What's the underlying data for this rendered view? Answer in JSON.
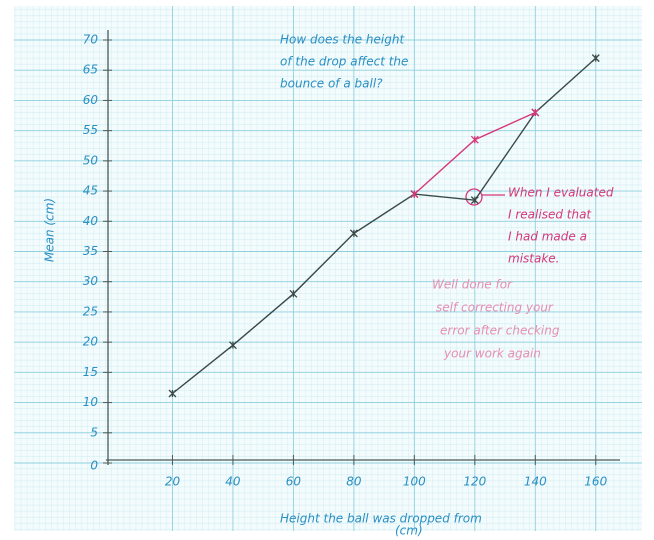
{
  "chart_data": {
    "type": "line",
    "title": [
      "How does the height",
      "of the drop affect the",
      "bounce of a ball?"
    ],
    "xlabel": [
      "Height the ball was dropped from",
      "(cm)"
    ],
    "ylabel": "Mean (cm)",
    "x": [
      20,
      40,
      60,
      80,
      100,
      120,
      140,
      160
    ],
    "series": [
      {
        "color": "#3a4a48",
        "values": [
          11.5,
          19.5,
          28,
          38,
          44.5,
          43.5,
          58,
          67
        ]
      },
      {
        "color": "#d4387a",
        "values": [
          null,
          null,
          null,
          null,
          44.5,
          53.5,
          58,
          null
        ]
      }
    ],
    "xlim": [
      0,
      170
    ],
    "ylim": [
      0,
      70
    ],
    "xticks": [
      20,
      40,
      60,
      80,
      100,
      120,
      140,
      160
    ],
    "yticks": [
      0,
      5,
      10,
      15,
      20,
      25,
      30,
      35,
      40,
      45,
      50,
      55,
      60,
      65,
      70
    ],
    "grid": true,
    "annotations": [
      {
        "color": "#d4387a",
        "lines": [
          "When I evaluated",
          "I realised that",
          "I had made a",
          "mistake."
        ]
      },
      {
        "color": "#e58fb2",
        "lines": [
          "Well done for",
          "self correcting your",
          "error after checking",
          "your work again"
        ]
      }
    ]
  }
}
